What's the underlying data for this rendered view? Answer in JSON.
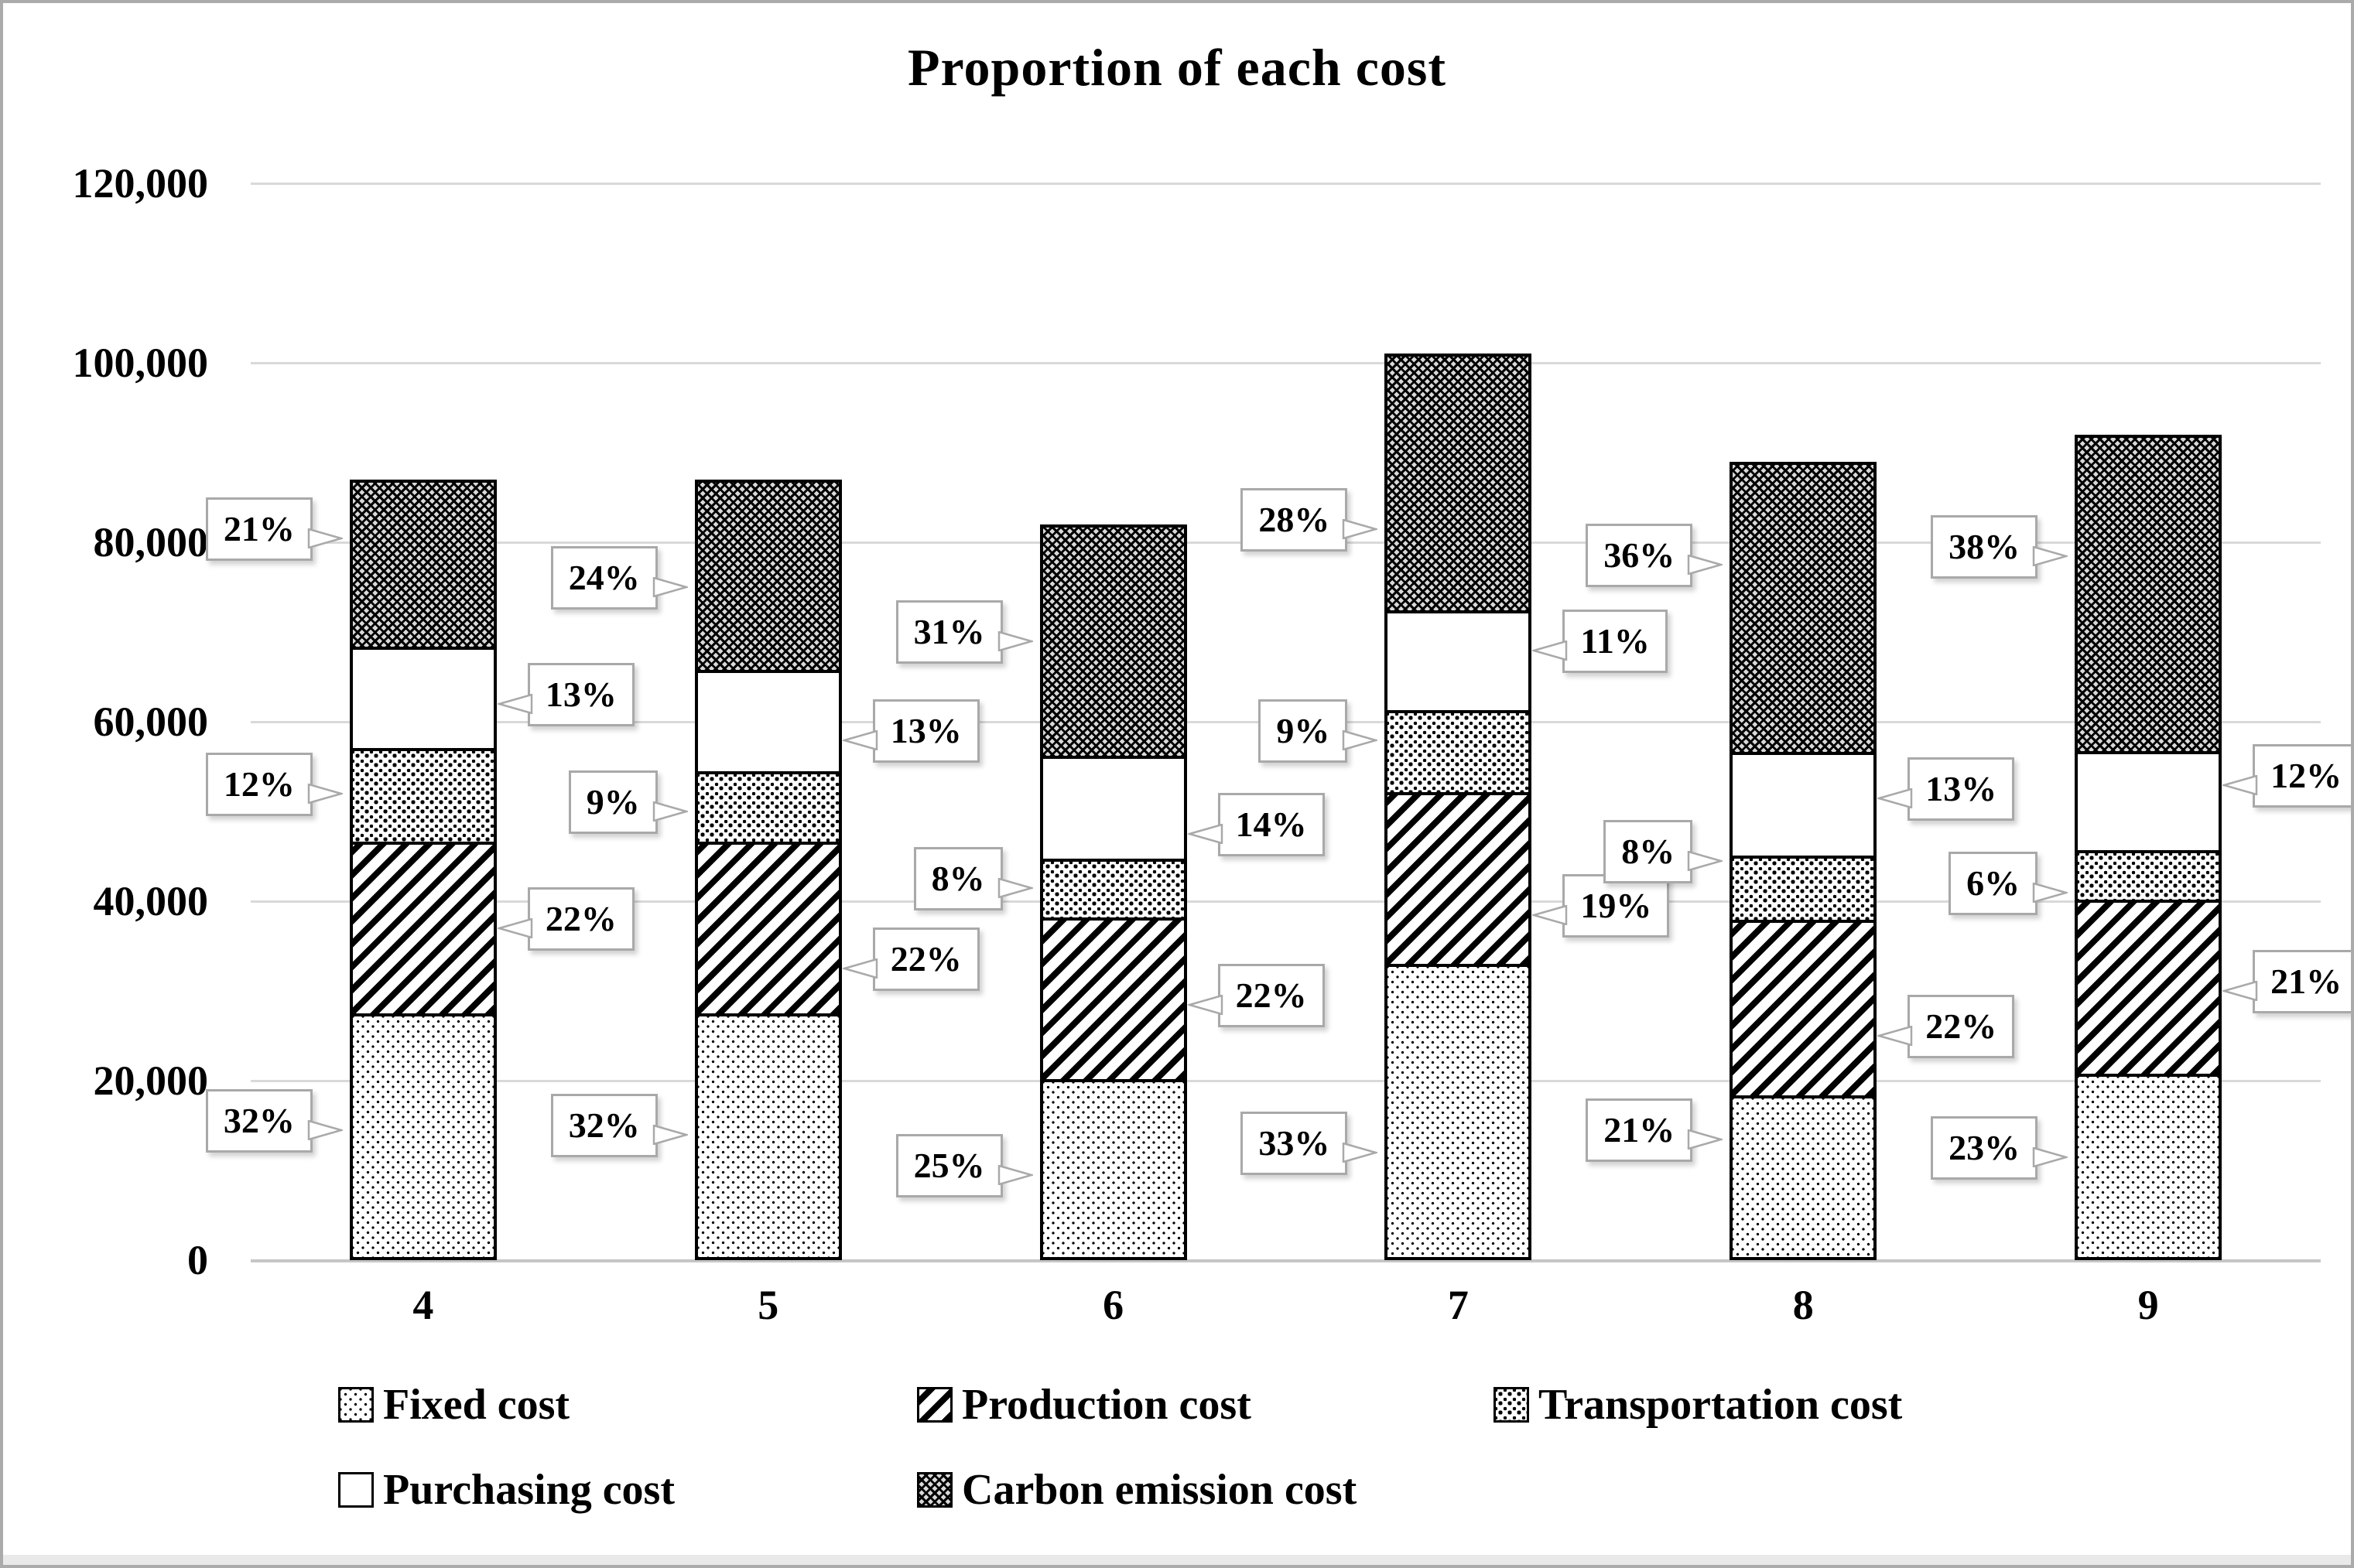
{
  "window": {
    "background": "#ffffff",
    "border_color": "#ababab"
  },
  "chart_data": {
    "type": "bar",
    "variant": "stacked-column",
    "title": "Proportion of each cost",
    "categories": [
      "4",
      "5",
      "6",
      "7",
      "8",
      "9"
    ],
    "bar_totals_estimated": [
      87000,
      87000,
      82000,
      101000,
      89000,
      92000
    ],
    "series": [
      {
        "name": "Fixed cost",
        "pattern": "dots-light",
        "percentages": [
          32,
          32,
          25,
          33,
          21,
          23
        ],
        "values": [
          27840,
          27840,
          20500,
          33330,
          18690,
          21160
        ]
      },
      {
        "name": "Production cost",
        "pattern": "diagonal-stripes",
        "percentages": [
          22,
          22,
          22,
          19,
          22,
          21
        ],
        "values": [
          19140,
          19140,
          18040,
          19190,
          19580,
          19320
        ]
      },
      {
        "name": "Transportation cost",
        "pattern": "dots-dense",
        "percentages": [
          12,
          9,
          8,
          9,
          8,
          6
        ],
        "values": [
          10440,
          7830,
          6560,
          9090,
          7120,
          5520
        ]
      },
      {
        "name": "Purchasing cost",
        "pattern": "plain",
        "percentages": [
          13,
          13,
          14,
          11,
          13,
          12
        ],
        "values": [
          11310,
          11310,
          11480,
          11110,
          11570,
          11040
        ]
      },
      {
        "name": "Carbon emission cost",
        "pattern": "crosshatch",
        "percentages": [
          21,
          24,
          31,
          28,
          36,
          38
        ],
        "values": [
          18270,
          20880,
          25420,
          28280,
          32040,
          34960
        ]
      }
    ],
    "y_axis": {
      "min": 0,
      "max": 120000,
      "step": 20000,
      "tick_labels": [
        "0",
        "20,000",
        "40,000",
        "60,000",
        "80,000",
        "100,000",
        "120,000"
      ]
    },
    "x_axis": {
      "tick_labels": [
        "4",
        "5",
        "6",
        "7",
        "8",
        "9"
      ]
    },
    "gridlines": "horizontal",
    "legend_position": "bottom",
    "legend_rows": [
      [
        "Fixed cost",
        "Production cost",
        "Transportation cost"
      ],
      [
        "Purchasing cost",
        "Carbon emission cost"
      ]
    ],
    "data_labels": [
      {
        "category": "4",
        "series": "Fixed cost",
        "label": "32%",
        "side": "left",
        "anchor_value": 15500
      },
      {
        "category": "4",
        "series": "Production cost",
        "label": "22%",
        "side": "right",
        "anchor_value": 38000
      },
      {
        "category": "4",
        "series": "Transportation cost",
        "label": "12%",
        "side": "left",
        "anchor_value": 53000
      },
      {
        "category": "4",
        "series": "Purchasing cost",
        "label": "13%",
        "side": "right",
        "anchor_value": 63000
      },
      {
        "category": "4",
        "series": "Carbon emission cost",
        "label": "21%",
        "side": "left",
        "anchor_value": 81500
      },
      {
        "category": "5",
        "series": "Fixed cost",
        "label": "32%",
        "side": "left",
        "anchor_value": 15000
      },
      {
        "category": "5",
        "series": "Production cost",
        "label": "22%",
        "side": "right",
        "anchor_value": 33500
      },
      {
        "category": "5",
        "series": "Transportation cost",
        "label": "9%",
        "side": "left",
        "anchor_value": 51000
      },
      {
        "category": "5",
        "series": "Purchasing cost",
        "label": "13%",
        "side": "right",
        "anchor_value": 59000
      },
      {
        "category": "5",
        "series": "Carbon emission cost",
        "label": "24%",
        "side": "left",
        "anchor_value": 76000
      },
      {
        "category": "6",
        "series": "Fixed cost",
        "label": "25%",
        "side": "left",
        "anchor_value": 10500
      },
      {
        "category": "6",
        "series": "Production cost",
        "label": "22%",
        "side": "right",
        "anchor_value": 29500
      },
      {
        "category": "6",
        "series": "Transportation cost",
        "label": "8%",
        "side": "left",
        "anchor_value": 42500
      },
      {
        "category": "6",
        "series": "Purchasing cost",
        "label": "14%",
        "side": "right",
        "anchor_value": 48500
      },
      {
        "category": "6",
        "series": "Carbon emission cost",
        "label": "31%",
        "side": "left",
        "anchor_value": 70000
      },
      {
        "category": "7",
        "series": "Fixed cost",
        "label": "33%",
        "side": "left",
        "anchor_value": 13000
      },
      {
        "category": "7",
        "series": "Production cost",
        "label": "19%",
        "side": "right",
        "anchor_value": 39500
      },
      {
        "category": "7",
        "series": "Transportation cost",
        "label": "9%",
        "side": "left",
        "anchor_value": 59000
      },
      {
        "category": "7",
        "series": "Purchasing cost",
        "label": "11%",
        "side": "right",
        "anchor_value": 69000
      },
      {
        "category": "7",
        "series": "Carbon emission cost",
        "label": "28%",
        "side": "left",
        "anchor_value": 82500
      },
      {
        "category": "8",
        "series": "Fixed cost",
        "label": "21%",
        "side": "left",
        "anchor_value": 14500
      },
      {
        "category": "8",
        "series": "Production cost",
        "label": "22%",
        "side": "right",
        "anchor_value": 26000
      },
      {
        "category": "8",
        "series": "Transportation cost",
        "label": "8%",
        "side": "left",
        "anchor_value": 45500
      },
      {
        "category": "8",
        "series": "Purchasing cost",
        "label": "13%",
        "side": "right",
        "anchor_value": 52500
      },
      {
        "category": "8",
        "series": "Carbon emission cost",
        "label": "36%",
        "side": "left",
        "anchor_value": 78500
      },
      {
        "category": "9",
        "series": "Fixed cost",
        "label": "23%",
        "side": "left",
        "anchor_value": 12500
      },
      {
        "category": "9",
        "series": "Production cost",
        "label": "21%",
        "side": "right",
        "anchor_value": 31000
      },
      {
        "category": "9",
        "series": "Transportation cost",
        "label": "6%",
        "side": "left",
        "anchor_value": 42000
      },
      {
        "category": "9",
        "series": "Purchasing cost",
        "label": "12%",
        "side": "right",
        "anchor_value": 54000
      },
      {
        "category": "9",
        "series": "Carbon emission cost",
        "label": "38%",
        "side": "left",
        "anchor_value": 79500
      }
    ],
    "colors": {
      "background": "#ffffff",
      "grid": "#d9d9d9",
      "axis_line": "#c6c6c6",
      "bar_border": "#000000",
      "pattern_ink": "#000000",
      "crosshatch_bg": "#d8d8d8",
      "callout_border": "#a9a9a9",
      "callout_fill": "#ffffff",
      "text": "#000000"
    }
  }
}
